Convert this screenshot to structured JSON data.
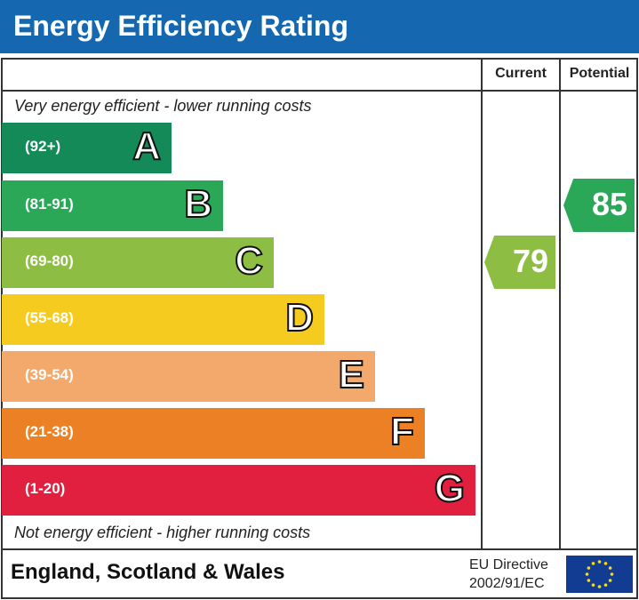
{
  "title": "Energy Efficiency Rating",
  "columns": {
    "current": "Current",
    "potential": "Potential"
  },
  "notes": {
    "top": "Very energy efficient - lower running costs",
    "bottom": "Not energy efficient - higher running costs"
  },
  "footer": {
    "region": "England, Scotland & Wales",
    "directive_line1": "EU Directive",
    "directive_line2": "2002/91/EC"
  },
  "chart_data": {
    "type": "bar",
    "bands": [
      {
        "letter": "A",
        "range": "(92+)",
        "color": "#138a57"
      },
      {
        "letter": "B",
        "range": "(81-91)",
        "color": "#2aa757"
      },
      {
        "letter": "C",
        "range": "(69-80)",
        "color": "#8dbe43"
      },
      {
        "letter": "D",
        "range": "(55-68)",
        "color": "#f5cb1f"
      },
      {
        "letter": "E",
        "range": "(39-54)",
        "color": "#f2a96b"
      },
      {
        "letter": "F",
        "range": "(21-38)",
        "color": "#ec8025"
      },
      {
        "letter": "G",
        "range": "(1-20)",
        "color": "#e11f3e"
      }
    ],
    "current": {
      "value": "79",
      "band": "C",
      "color": "#8dbe43"
    },
    "potential": {
      "value": "85",
      "band": "B",
      "color": "#2aa757"
    }
  }
}
